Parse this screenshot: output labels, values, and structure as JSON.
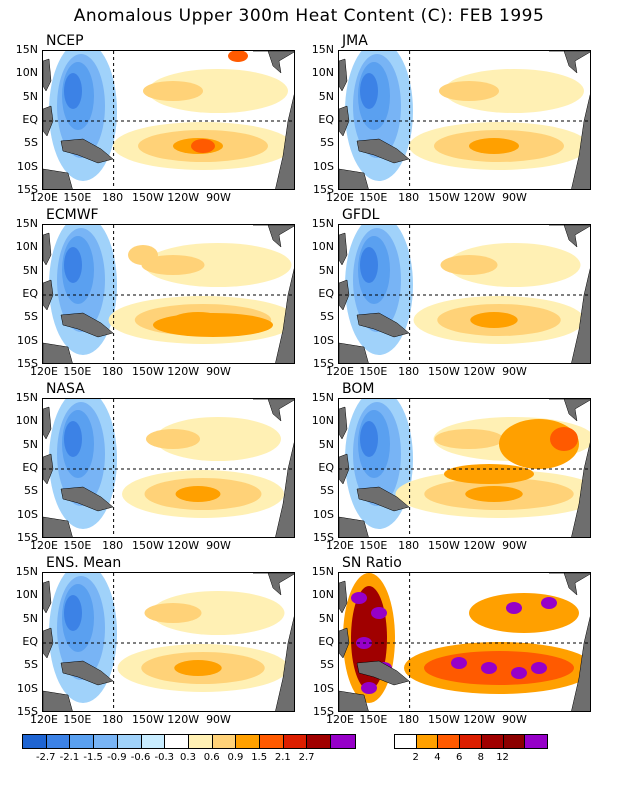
{
  "title": "Anomalous Upper 300m Heat Content (C): FEB 1995",
  "panels": [
    {
      "name": "NCEP"
    },
    {
      "name": "JMA"
    },
    {
      "name": "ECMWF"
    },
    {
      "name": "GFDL"
    },
    {
      "name": "NASA"
    },
    {
      "name": "BOM"
    },
    {
      "name": "ENS. Mean"
    },
    {
      "name": "SN Ratio"
    }
  ],
  "lat_labels": [
    "15N",
    "10N",
    "5N",
    "EQ",
    "5S",
    "10S",
    "15S"
  ],
  "lon_labels": [
    "120E",
    "150E",
    "180",
    "150W",
    "120W",
    "90W"
  ],
  "colorbar_anomaly": {
    "colors": [
      "#1e64d2",
      "#3c82e6",
      "#5aa0f0",
      "#78b4f5",
      "#a0d2fa",
      "#c8ecff",
      "#ffffff",
      "#fff0b4",
      "#ffd278",
      "#ffa000",
      "#ff5a00",
      "#dc1e00",
      "#a00000",
      "#9600c8"
    ],
    "labels": [
      "-2.7",
      "-2.1",
      "-1.5",
      "-0.9",
      "-0.6",
      "-0.3",
      "0.3",
      "0.6",
      "0.9",
      "1.5",
      "2.1",
      "2.7"
    ]
  },
  "colorbar_sn": {
    "colors": [
      "#ffffff",
      "#ffa000",
      "#ff5a00",
      "#dc1e00",
      "#a00000",
      "#8c0000",
      "#9600c8"
    ],
    "labels": [
      "2",
      "4",
      "6",
      "8",
      "12"
    ]
  },
  "colors": {
    "land": "#6e6e6e",
    "frame": "#000000"
  }
}
